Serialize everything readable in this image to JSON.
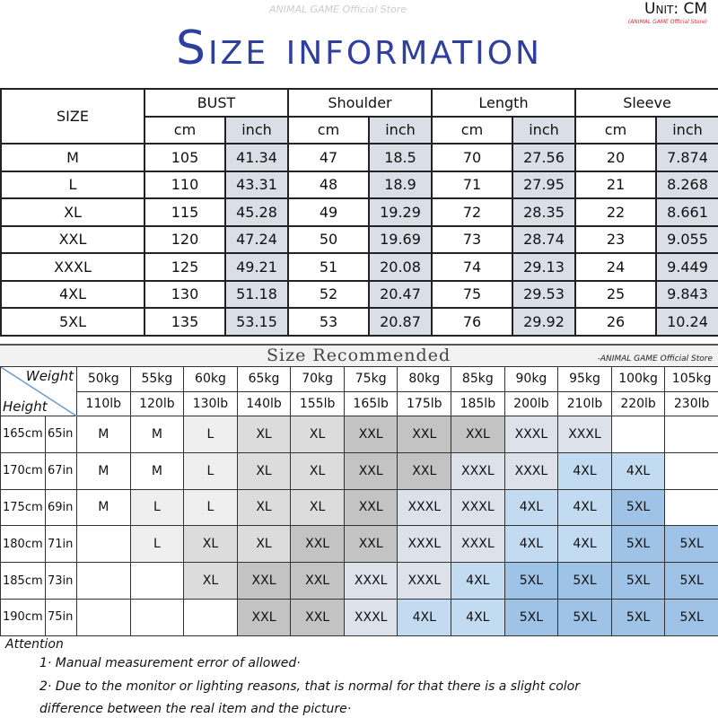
{
  "header": {
    "title": "Size information",
    "unit": "Unit: CM",
    "unit_store": "(ANIMAL GAME Official Store)",
    "watermark": "ANIMAL GAME Official Store"
  },
  "size_table": {
    "size_label": "SIZE",
    "groups": [
      "BUST",
      "Shoulder",
      "Length",
      "Sleeve"
    ],
    "sub": [
      "cm",
      "inch"
    ],
    "rows": [
      [
        "M",
        "105",
        "41.34",
        "47",
        "18.5",
        "70",
        "27.56",
        "20",
        "7.874"
      ],
      [
        "L",
        "110",
        "43.31",
        "48",
        "18.9",
        "71",
        "27.95",
        "21",
        "8.268"
      ],
      [
        "XL",
        "115",
        "45.28",
        "49",
        "19.29",
        "72",
        "28.35",
        "22",
        "8.661"
      ],
      [
        "XXL",
        "120",
        "47.24",
        "50",
        "19.69",
        "73",
        "28.74",
        "23",
        "9.055"
      ],
      [
        "XXXL",
        "125",
        "49.21",
        "51",
        "20.08",
        "74",
        "29.13",
        "24",
        "9.449"
      ],
      [
        "4XL",
        "130",
        "51.18",
        "52",
        "20.47",
        "75",
        "29.53",
        "25",
        "9.843"
      ],
      [
        "5XL",
        "135",
        "53.15",
        "53",
        "20.87",
        "76",
        "29.92",
        "26",
        "10.24"
      ]
    ]
  },
  "recommend": {
    "title": "Size Recommended",
    "store": "-ANIMAL GAME Official Store",
    "weight_label": "Weight",
    "height_label": "Height",
    "kg": [
      "50kg",
      "55kg",
      "60kg",
      "65kg",
      "70kg",
      "75kg",
      "80kg",
      "85kg",
      "90kg",
      "95kg",
      "100kg",
      "105kg"
    ],
    "lb": [
      "110lb",
      "120lb",
      "130lb",
      "140lb",
      "155lb",
      "165lb",
      "175lb",
      "185lb",
      "200lb",
      "210lb",
      "220lb",
      "230lb"
    ],
    "rows": [
      {
        "cm": "165cm",
        "in": "65in",
        "sizes": [
          "M",
          "M",
          "L",
          "XL",
          "XL",
          "XXL",
          "XXL",
          "XXL",
          "XXXL",
          "XXXL",
          "",
          ""
        ]
      },
      {
        "cm": "170cm",
        "in": "67in",
        "sizes": [
          "M",
          "M",
          "L",
          "XL",
          "XL",
          "XXL",
          "XXL",
          "XXXL",
          "XXXL",
          "4XL",
          "4XL",
          ""
        ]
      },
      {
        "cm": "175cm",
        "in": "69in",
        "sizes": [
          "M",
          "L",
          "L",
          "XL",
          "XL",
          "XXL",
          "XXXL",
          "XXXL",
          "4XL",
          "4XL",
          "5XL",
          ""
        ]
      },
      {
        "cm": "180cm",
        "in": "71in",
        "sizes": [
          "",
          "L",
          "XL",
          "XL",
          "XXL",
          "XXL",
          "XXXL",
          "XXXL",
          "4XL",
          "4XL",
          "5XL",
          "5XL"
        ]
      },
      {
        "cm": "185cm",
        "in": "73in",
        "sizes": [
          "",
          "",
          "XL",
          "XXL",
          "XXL",
          "XXXL",
          "XXXL",
          "4XL",
          "5XL",
          "5XL",
          "5XL",
          "5XL"
        ]
      },
      {
        "cm": "190cm",
        "in": "75in",
        "sizes": [
          "",
          "",
          "",
          "XXL",
          "XXL",
          "XXXL",
          "4XL",
          "4XL",
          "5XL",
          "5XL",
          "5XL",
          "5XL"
        ]
      }
    ],
    "colors": {
      "M": "#ffffff",
      "L": "#efefef",
      "XL": "#dcdcdc",
      "XXL": "#c3c3c3",
      "XXXL": "#dce1ea",
      "4XL": "#c3dbf0",
      "5XL": "#9fc3e7"
    }
  },
  "attention": {
    "title": "Attention",
    "notes": [
      "1· Manual measurement error of allowed·",
      "2·  Due to the monitor or lighting reasons, that is normal for that there is a slight color",
      "difference between the real item and the picture·"
    ]
  },
  "colors": {
    "title": "#2e3f9e",
    "inch_bg": "#d9dee7"
  }
}
